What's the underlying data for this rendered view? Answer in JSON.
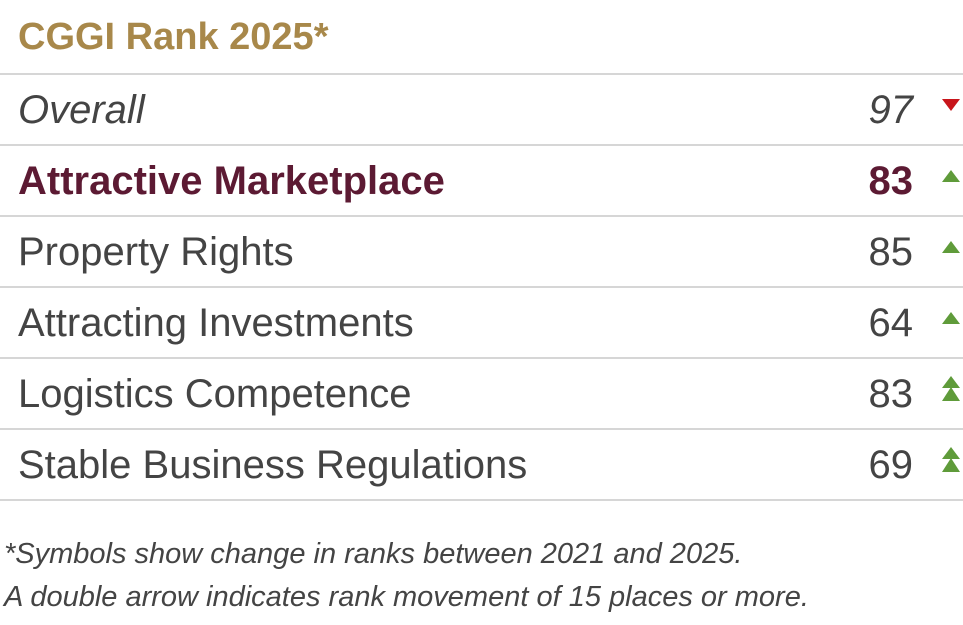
{
  "header": {
    "title": "CGGI Rank 2025*"
  },
  "table": {
    "rows": [
      [
        "Overall",
        97
      ],
      [
        "Attractive Marketplace",
        83
      ],
      [
        "Property Rights",
        85
      ],
      [
        "Attracting Investments",
        64
      ],
      [
        "Logistics Competence",
        83
      ],
      [
        "Stable Business Regulations",
        69
      ]
    ]
  },
  "footnote": [
    "*Symbols show change in ranks between 2021 and 2025.",
    "A double arrow indicates rank movement of 15 places or more."
  ]
}
